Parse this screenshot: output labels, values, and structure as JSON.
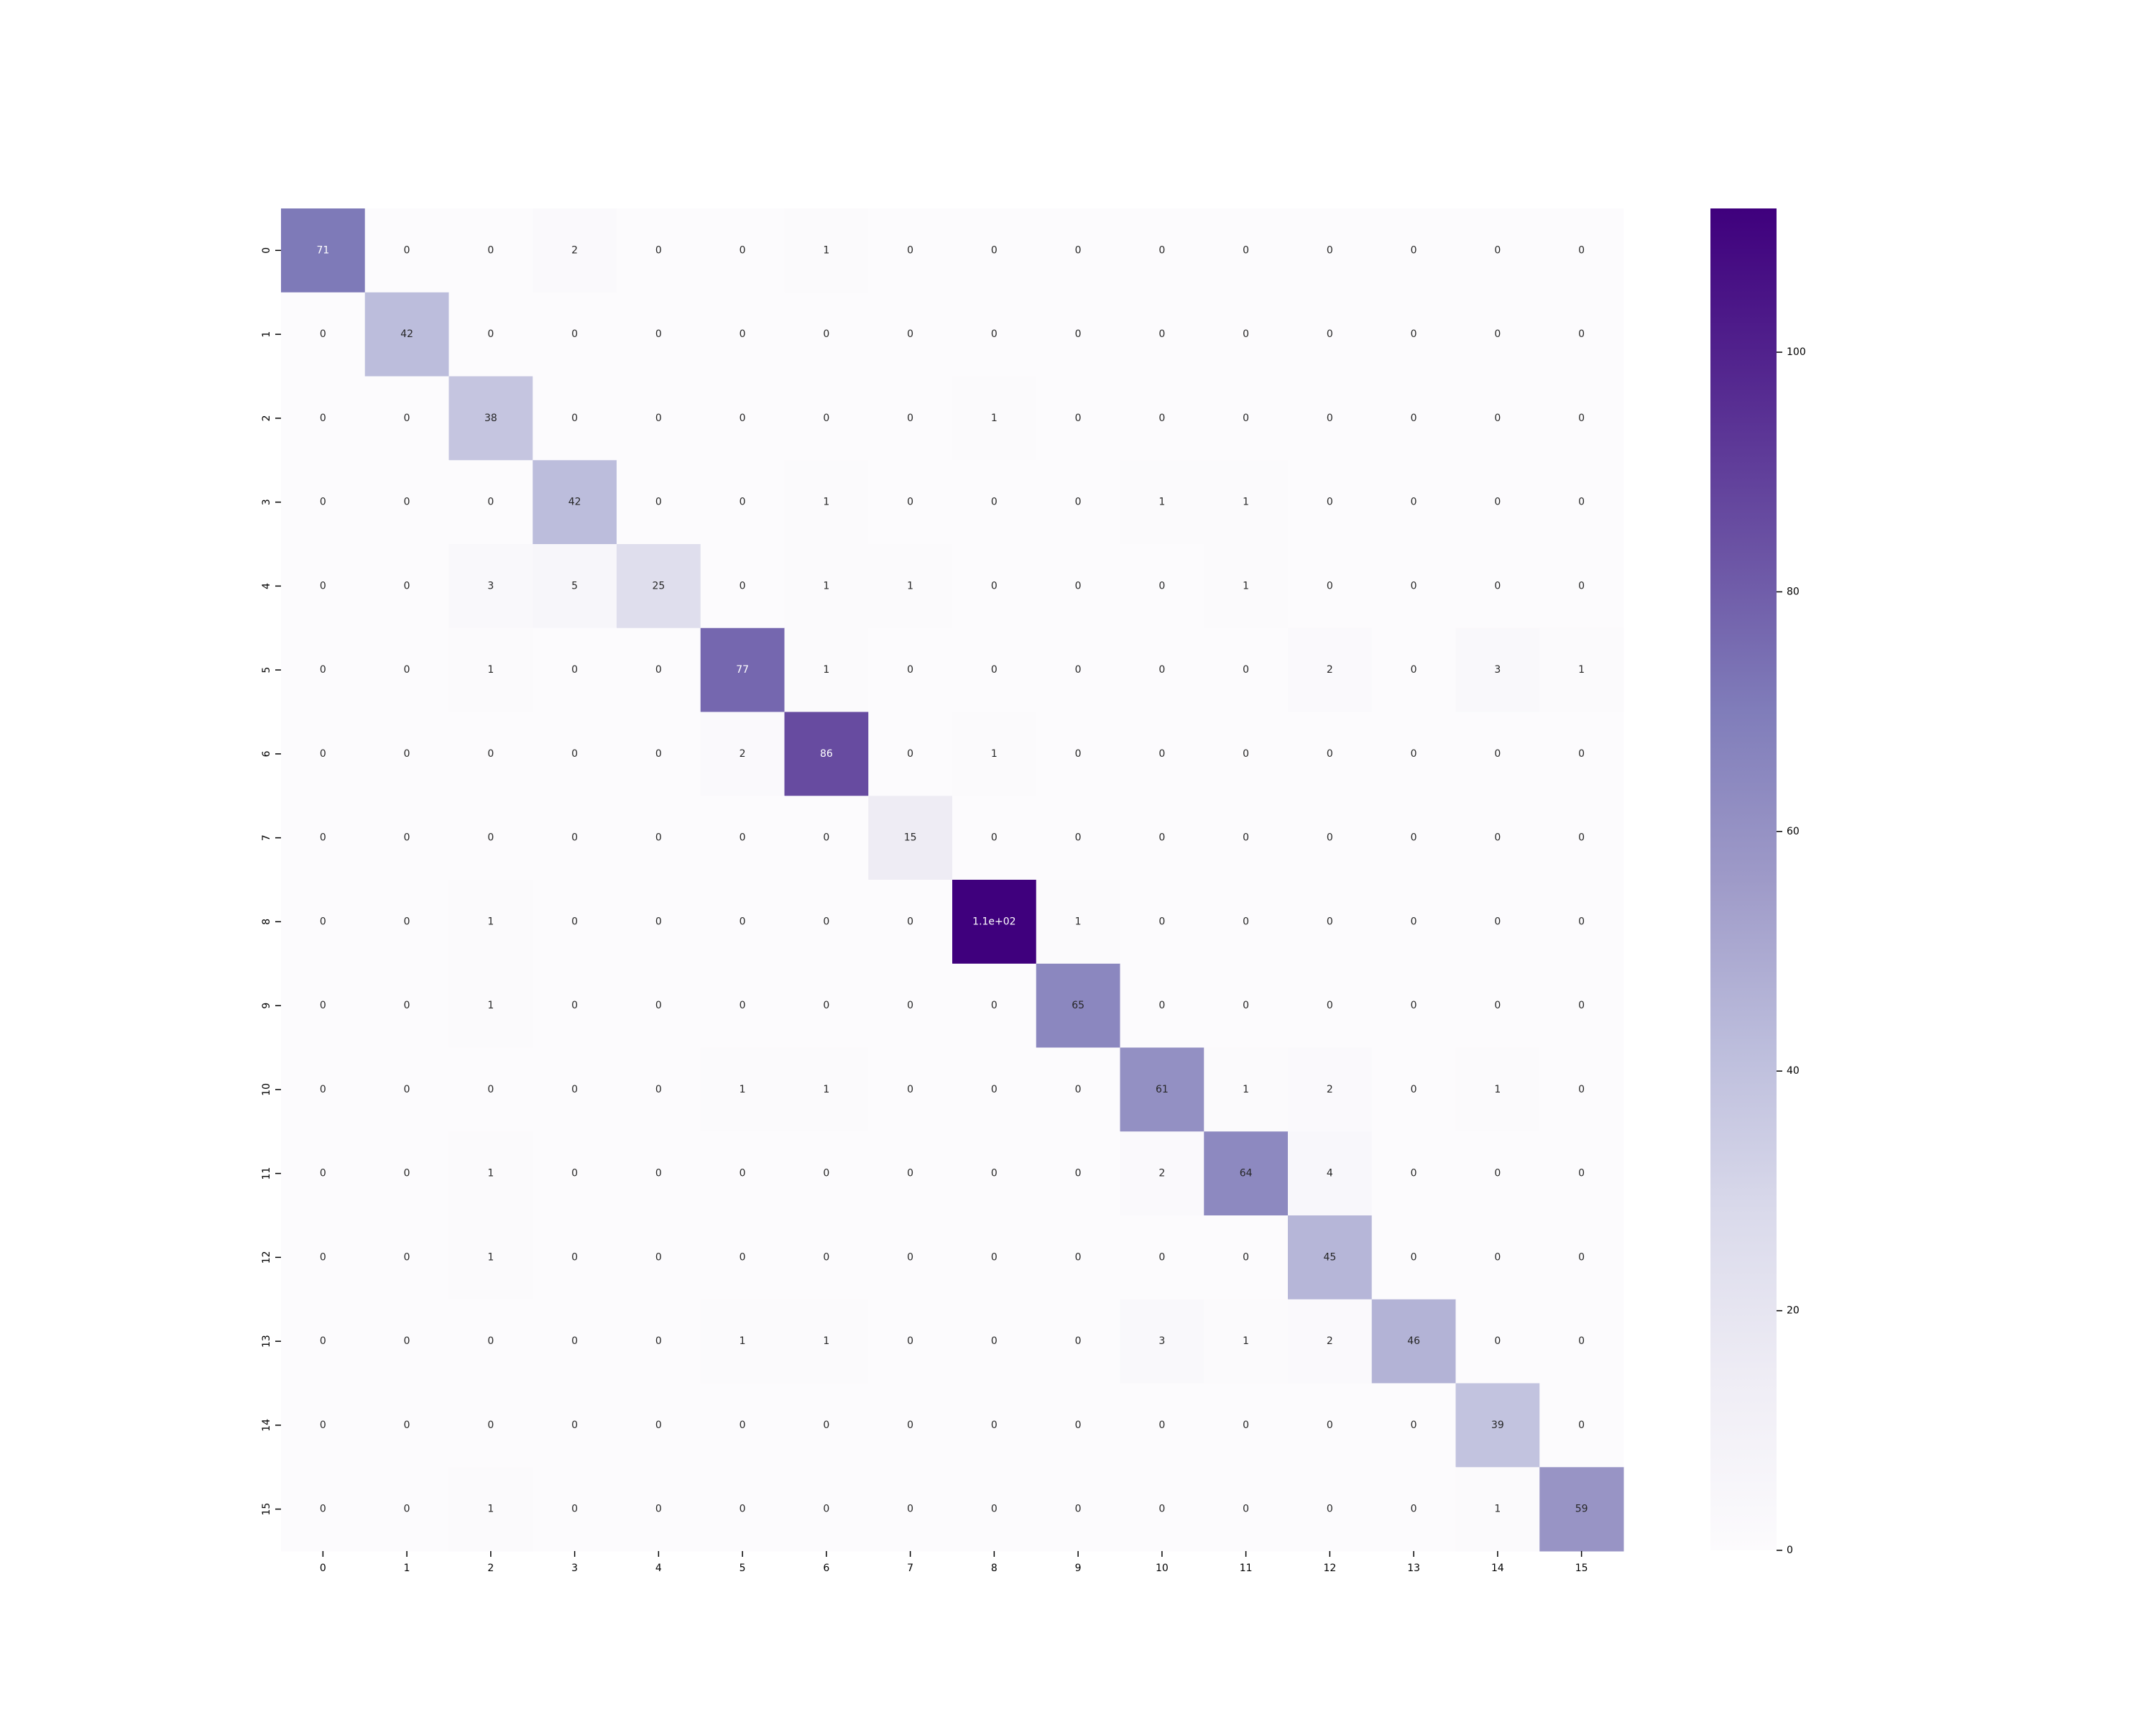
{
  "chart_data": {
    "type": "heatmap",
    "title": "",
    "xlabel": "",
    "ylabel": "",
    "x_tick_labels": [
      "0",
      "1",
      "2",
      "3",
      "4",
      "5",
      "6",
      "7",
      "8",
      "9",
      "10",
      "11",
      "12",
      "13",
      "14",
      "15"
    ],
    "y_tick_labels": [
      "0",
      "1",
      "2",
      "3",
      "4",
      "5",
      "6",
      "7",
      "8",
      "9",
      "10",
      "11",
      "12",
      "13",
      "14",
      "15"
    ],
    "matrix": [
      [
        71,
        0,
        0,
        2,
        0,
        0,
        1,
        0,
        0,
        0,
        0,
        0,
        0,
        0,
        0,
        0
      ],
      [
        0,
        42,
        0,
        0,
        0,
        0,
        0,
        0,
        0,
        0,
        0,
        0,
        0,
        0,
        0,
        0
      ],
      [
        0,
        0,
        38,
        0,
        0,
        0,
        0,
        0,
        1,
        0,
        0,
        0,
        0,
        0,
        0,
        0
      ],
      [
        0,
        0,
        0,
        42,
        0,
        0,
        1,
        0,
        0,
        0,
        1,
        1,
        0,
        0,
        0,
        0
      ],
      [
        0,
        0,
        3,
        5,
        25,
        0,
        1,
        1,
        0,
        0,
        0,
        1,
        0,
        0,
        0,
        0
      ],
      [
        0,
        0,
        1,
        0,
        0,
        77,
        1,
        0,
        0,
        0,
        0,
        0,
        2,
        0,
        3,
        1
      ],
      [
        0,
        0,
        0,
        0,
        0,
        2,
        86,
        0,
        1,
        0,
        0,
        0,
        0,
        0,
        0,
        0
      ],
      [
        0,
        0,
        0,
        0,
        0,
        0,
        0,
        15,
        0,
        0,
        0,
        0,
        0,
        0,
        0,
        0
      ],
      [
        0,
        0,
        1,
        0,
        0,
        0,
        0,
        0,
        112,
        1,
        0,
        0,
        0,
        0,
        0,
        0
      ],
      [
        0,
        0,
        1,
        0,
        0,
        0,
        0,
        0,
        0,
        65,
        0,
        0,
        0,
        0,
        0,
        0
      ],
      [
        0,
        0,
        0,
        0,
        0,
        1,
        1,
        0,
        0,
        0,
        61,
        1,
        2,
        0,
        1,
        0
      ],
      [
        0,
        0,
        1,
        0,
        0,
        0,
        0,
        0,
        0,
        0,
        2,
        64,
        4,
        0,
        0,
        0
      ],
      [
        0,
        0,
        1,
        0,
        0,
        0,
        0,
        0,
        0,
        0,
        0,
        0,
        45,
        0,
        0,
        0
      ],
      [
        0,
        0,
        0,
        0,
        0,
        1,
        1,
        0,
        0,
        0,
        3,
        1,
        2,
        46,
        0,
        0
      ],
      [
        0,
        0,
        0,
        0,
        0,
        0,
        0,
        0,
        0,
        0,
        0,
        0,
        0,
        0,
        39,
        0
      ],
      [
        0,
        0,
        1,
        0,
        0,
        0,
        0,
        0,
        0,
        0,
        0,
        0,
        0,
        0,
        1,
        59
      ]
    ],
    "annotations": [
      [
        "71",
        "0",
        "0",
        "2",
        "0",
        "0",
        "1",
        "0",
        "0",
        "0",
        "0",
        "0",
        "0",
        "0",
        "0",
        "0"
      ],
      [
        "0",
        "42",
        "0",
        "0",
        "0",
        "0",
        "0",
        "0",
        "0",
        "0",
        "0",
        "0",
        "0",
        "0",
        "0",
        "0"
      ],
      [
        "0",
        "0",
        "38",
        "0",
        "0",
        "0",
        "0",
        "0",
        "1",
        "0",
        "0",
        "0",
        "0",
        "0",
        "0",
        "0"
      ],
      [
        "0",
        "0",
        "0",
        "42",
        "0",
        "0",
        "1",
        "0",
        "0",
        "0",
        "1",
        "1",
        "0",
        "0",
        "0",
        "0"
      ],
      [
        "0",
        "0",
        "3",
        "5",
        "25",
        "0",
        "1",
        "1",
        "0",
        "0",
        "0",
        "1",
        "0",
        "0",
        "0",
        "0"
      ],
      [
        "0",
        "0",
        "1",
        "0",
        "0",
        "77",
        "1",
        "0",
        "0",
        "0",
        "0",
        "0",
        "2",
        "0",
        "3",
        "1"
      ],
      [
        "0",
        "0",
        "0",
        "0",
        "0",
        "2",
        "86",
        "0",
        "1",
        "0",
        "0",
        "0",
        "0",
        "0",
        "0",
        "0"
      ],
      [
        "0",
        "0",
        "0",
        "0",
        "0",
        "0",
        "0",
        "15",
        "0",
        "0",
        "0",
        "0",
        "0",
        "0",
        "0",
        "0"
      ],
      [
        "0",
        "0",
        "1",
        "0",
        "0",
        "0",
        "0",
        "0",
        "1.1e+02",
        "1",
        "0",
        "0",
        "0",
        "0",
        "0",
        "0"
      ],
      [
        "0",
        "0",
        "1",
        "0",
        "0",
        "0",
        "0",
        "0",
        "0",
        "65",
        "0",
        "0",
        "0",
        "0",
        "0",
        "0"
      ],
      [
        "0",
        "0",
        "0",
        "0",
        "0",
        "1",
        "1",
        "0",
        "0",
        "0",
        "61",
        "1",
        "2",
        "0",
        "1",
        "0"
      ],
      [
        "0",
        "0",
        "1",
        "0",
        "0",
        "0",
        "0",
        "0",
        "0",
        "0",
        "2",
        "64",
        "4",
        "0",
        "0",
        "0"
      ],
      [
        "0",
        "0",
        "1",
        "0",
        "0",
        "0",
        "0",
        "0",
        "0",
        "0",
        "0",
        "0",
        "45",
        "0",
        "0",
        "0"
      ],
      [
        "0",
        "0",
        "0",
        "0",
        "0",
        "1",
        "1",
        "0",
        "0",
        "0",
        "3",
        "1",
        "2",
        "46",
        "0",
        "0"
      ],
      [
        "0",
        "0",
        "0",
        "0",
        "0",
        "0",
        "0",
        "0",
        "0",
        "0",
        "0",
        "0",
        "0",
        "0",
        "39",
        "0"
      ],
      [
        "0",
        "0",
        "1",
        "0",
        "0",
        "0",
        "0",
        "0",
        "0",
        "0",
        "0",
        "0",
        "0",
        "0",
        "1",
        "59"
      ]
    ],
    "color_range": [
      0,
      112
    ],
    "colormap": "Purples",
    "colormap_stops": [
      "#fcfbfd",
      "#efedf5",
      "#dadaeb",
      "#bcbddc",
      "#9e9ac8",
      "#807dba",
      "#6a51a3",
      "#54278f",
      "#3f007d"
    ],
    "colorbar": {
      "ticks": [
        0,
        20,
        40,
        60,
        80,
        100
      ],
      "tick_labels": [
        "0",
        "20",
        "40",
        "60",
        "80",
        "100"
      ]
    },
    "grid": false,
    "legend": "colorbar-right"
  }
}
